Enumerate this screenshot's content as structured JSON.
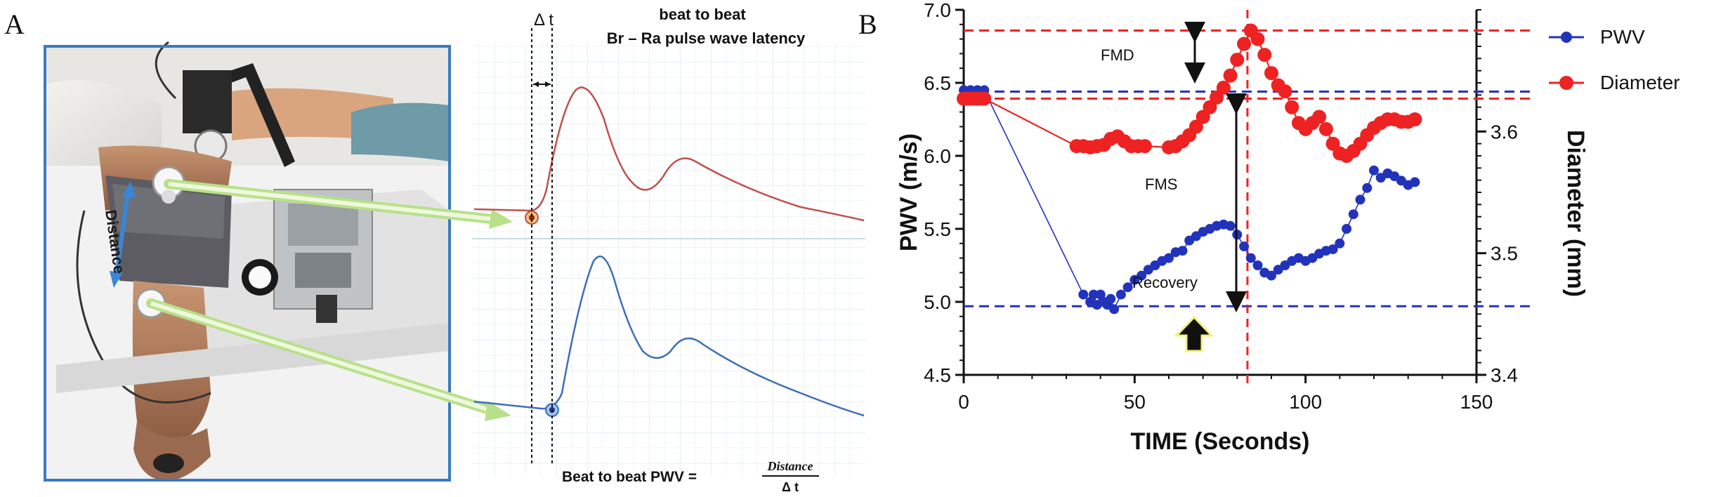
{
  "panel_a": {
    "letter": "A",
    "photo_label": "Distance",
    "delta_t_label": "Δ t",
    "header_line1": "beat to beat",
    "header_line2": "Br – Ra pulse wave latency",
    "formula_prefix": "Beat to beat PWV =",
    "formula_numerator": "Distance",
    "formula_denominator": "Δ t",
    "colors": {
      "upper_wave": "#c0504d",
      "lower_wave": "#3d6fb5",
      "arrow": "#b8e08a",
      "photo_border": "#3b7bbf"
    }
  },
  "panel_b": {
    "letter": "B",
    "annotations": {
      "fmd": "FMD",
      "fms": "FMS",
      "recovery": "Recovery"
    },
    "colors": {
      "pwv": "#2233bb",
      "diameter": "#ee2222"
    }
  },
  "chart_data": {
    "type": "scatter",
    "xlabel": "TIME (Seconds)",
    "ylabel": "PWV (m/s)",
    "y2label": "Diameter (mm)",
    "xlim": [
      0,
      150
    ],
    "ylim": [
      4.5,
      7.0
    ],
    "y2lim": [
      3.4,
      3.7
    ],
    "x_ticks": [
      "0",
      "50",
      "100",
      "150"
    ],
    "y_ticks": [
      "4.5",
      "5.0",
      "5.5",
      "6.0",
      "6.5",
      "7.0"
    ],
    "y2_ticks": [
      "3.4",
      "3.5",
      "3.6"
    ],
    "legend_position": "top-right",
    "reference_lines": {
      "pwv_baseline": 6.44,
      "pwv_min": 4.97,
      "diameter_peak": 3.683,
      "diameter_baseline": 3.627,
      "peak_time": 83
    },
    "series": [
      {
        "name": "PWV",
        "axis": "left",
        "color": "#2233bb",
        "points": [
          [
            0,
            6.45
          ],
          [
            2,
            6.45
          ],
          [
            4,
            6.45
          ],
          [
            6,
            6.45
          ],
          [
            35,
            5.05
          ],
          [
            37,
            5.0
          ],
          [
            38,
            5.05
          ],
          [
            39,
            4.98
          ],
          [
            40,
            5.05
          ],
          [
            41,
            5.0
          ],
          [
            42,
            4.98
          ],
          [
            43,
            5.02
          ],
          [
            44,
            4.95
          ],
          [
            46,
            5.05
          ],
          [
            48,
            5.1
          ],
          [
            50,
            5.15
          ],
          [
            52,
            5.18
          ],
          [
            54,
            5.22
          ],
          [
            56,
            5.25
          ],
          [
            58,
            5.28
          ],
          [
            60,
            5.3
          ],
          [
            62,
            5.34
          ],
          [
            64,
            5.35
          ],
          [
            66,
            5.42
          ],
          [
            68,
            5.45
          ],
          [
            70,
            5.48
          ],
          [
            72,
            5.5
          ],
          [
            74,
            5.52
          ],
          [
            76,
            5.53
          ],
          [
            78,
            5.52
          ],
          [
            80,
            5.46
          ],
          [
            82,
            5.38
          ],
          [
            84,
            5.3
          ],
          [
            86,
            5.25
          ],
          [
            88,
            5.2
          ],
          [
            90,
            5.18
          ],
          [
            92,
            5.22
          ],
          [
            94,
            5.25
          ],
          [
            96,
            5.28
          ],
          [
            98,
            5.3
          ],
          [
            100,
            5.28
          ],
          [
            102,
            5.3
          ],
          [
            104,
            5.33
          ],
          [
            106,
            5.35
          ],
          [
            108,
            5.36
          ],
          [
            110,
            5.4
          ],
          [
            112,
            5.5
          ],
          [
            114,
            5.6
          ],
          [
            116,
            5.7
          ],
          [
            118,
            5.78
          ],
          [
            120,
            5.9
          ],
          [
            122,
            5.85
          ],
          [
            124,
            5.88
          ],
          [
            126,
            5.86
          ],
          [
            128,
            5.83
          ],
          [
            130,
            5.8
          ],
          [
            132,
            5.82
          ]
        ]
      },
      {
        "name": "Diameter",
        "axis": "right",
        "color": "#ee2222",
        "points": [
          [
            0,
            3.627
          ],
          [
            1,
            3.627
          ],
          [
            2,
            3.627
          ],
          [
            3,
            3.627
          ],
          [
            4,
            3.627
          ],
          [
            5,
            3.627
          ],
          [
            6,
            3.627
          ],
          [
            33,
            3.588
          ],
          [
            35,
            3.588
          ],
          [
            37,
            3.587
          ],
          [
            39,
            3.588
          ],
          [
            41,
            3.589
          ],
          [
            43,
            3.594
          ],
          [
            45,
            3.596
          ],
          [
            47,
            3.592
          ],
          [
            49,
            3.588
          ],
          [
            51,
            3.588
          ],
          [
            53,
            3.588
          ],
          [
            60,
            3.587
          ],
          [
            62,
            3.588
          ],
          [
            64,
            3.592
          ],
          [
            66,
            3.597
          ],
          [
            68,
            3.604
          ],
          [
            70,
            3.612
          ],
          [
            72,
            3.62
          ],
          [
            74,
            3.628
          ],
          [
            76,
            3.636
          ],
          [
            78,
            3.646
          ],
          [
            80,
            3.659
          ],
          [
            82,
            3.672
          ],
          [
            84,
            3.683
          ],
          [
            86,
            3.676
          ],
          [
            88,
            3.663
          ],
          [
            90,
            3.648
          ],
          [
            92,
            3.638
          ],
          [
            94,
            3.633
          ],
          [
            96,
            3.62
          ],
          [
            98,
            3.607
          ],
          [
            100,
            3.602
          ],
          [
            102,
            3.607
          ],
          [
            104,
            3.612
          ],
          [
            106,
            3.602
          ],
          [
            108,
            3.59
          ],
          [
            110,
            3.582
          ],
          [
            112,
            3.58
          ],
          [
            114,
            3.584
          ],
          [
            116,
            3.59
          ],
          [
            118,
            3.597
          ],
          [
            120,
            3.603
          ],
          [
            122,
            3.607
          ],
          [
            124,
            3.61
          ],
          [
            126,
            3.61
          ],
          [
            128,
            3.608
          ],
          [
            130,
            3.608
          ],
          [
            132,
            3.61
          ]
        ]
      }
    ]
  }
}
